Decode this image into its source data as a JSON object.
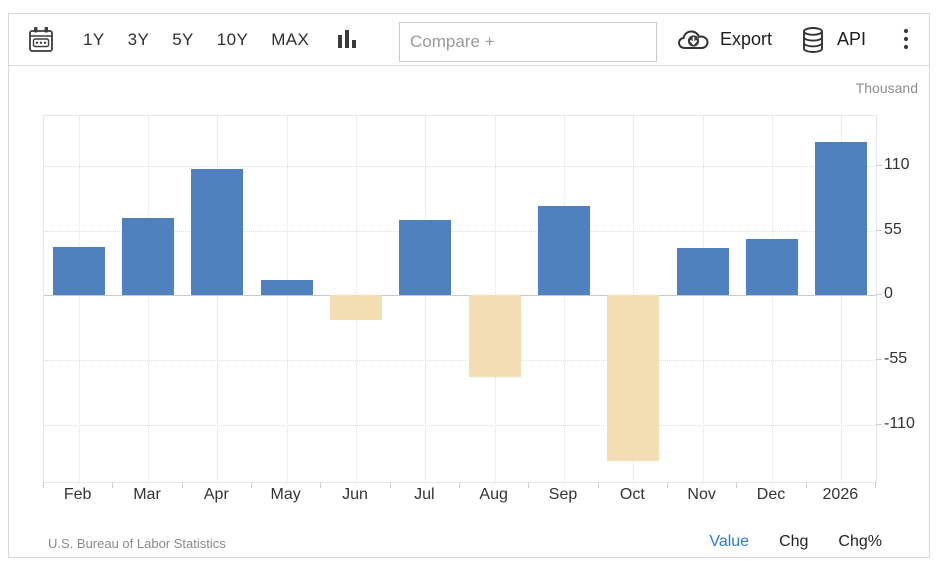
{
  "toolbar": {
    "calendar_icon": "calendar-range-icon",
    "ranges": [
      "1Y",
      "3Y",
      "5Y",
      "10Y",
      "MAX"
    ],
    "chart_type_icon": "bar-chart-icon",
    "compare_placeholder": "Compare +",
    "export_icon": "cloud-download-icon",
    "export_label": "Export",
    "api_icon": "database-icon",
    "api_label": "API",
    "menu_icon": "kebab-menu-icon"
  },
  "chart": {
    "unit_label": "Thousand"
  },
  "chart_data": {
    "type": "bar",
    "title": "",
    "xlabel": "",
    "ylabel": "Thousand",
    "categories": [
      "Feb",
      "Mar",
      "Apr",
      "May",
      "Jun",
      "Jul",
      "Aug",
      "Sep",
      "Oct",
      "Nov",
      "Dec",
      "2026"
    ],
    "values": [
      41,
      66,
      107,
      13,
      -21,
      64,
      -69,
      76,
      -140,
      40,
      48,
      130
    ],
    "yticks": [
      110,
      55,
      0,
      -55,
      -110
    ],
    "ylim": [
      -158,
      152
    ],
    "grid": true,
    "legend": "none",
    "colors": {
      "positive": "#4e81bd",
      "negative": "#f3deb3"
    }
  },
  "footer": {
    "source": "U.S. Bureau of Labor Statistics",
    "links": [
      "Value",
      "Chg",
      "Chg%"
    ],
    "active_link": "Value",
    "active_color": "#2b7cd9"
  }
}
